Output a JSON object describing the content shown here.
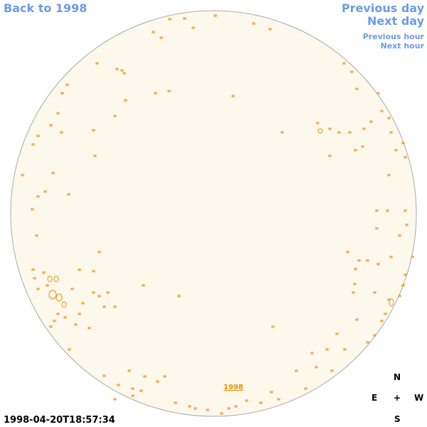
{
  "nav": {
    "back": "Back to 1998",
    "previous_day": "Previous day",
    "next_day": "Next day",
    "previous_hour": "Previous hour",
    "next_hour": "Next hour"
  },
  "disk_label": "1998",
  "timestamp": "1998-04-20T18:57:34",
  "compass": {
    "north": "N",
    "east": "E",
    "center": "+",
    "west": "W",
    "south": "S"
  }
}
